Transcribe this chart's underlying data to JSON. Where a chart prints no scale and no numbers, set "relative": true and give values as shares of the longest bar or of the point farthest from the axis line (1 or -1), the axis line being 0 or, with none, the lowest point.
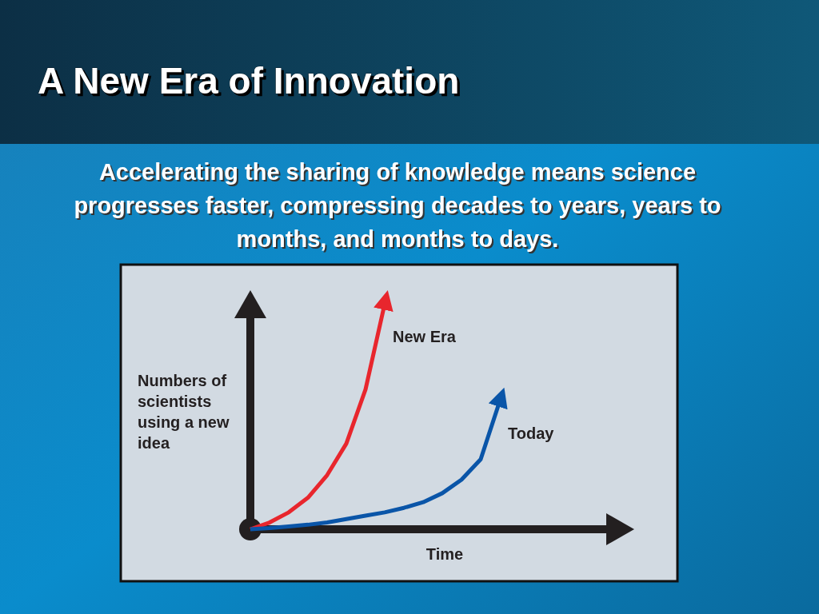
{
  "chart_data": {
    "type": "line",
    "title": "A New Era of Innovation",
    "subtitle": "Accelerating the sharing of knowledge means science progresses faster, compressing decades to years, years to months, and months to days.",
    "xlabel": "Time",
    "ylabel": "Numbers of scientists using a new idea",
    "relative": true,
    "marker": "none",
    "line_style": "solid",
    "categories": [
      null,
      null,
      null,
      null,
      null,
      null,
      null,
      null,
      null,
      null,
      null,
      null,
      null,
      null
    ],
    "series": [
      {
        "name": "New Era",
        "color": "#e8262d",
        "values": [
          0,
          0.03,
          0.075,
          0.14,
          0.24,
          0.38,
          0.62,
          1.0,
          null,
          null,
          null,
          null,
          null,
          null
        ]
      },
      {
        "name": "Today",
        "color": "#0a55a8",
        "values": [
          0,
          0.005,
          0.012,
          0.02,
          0.03,
          0.045,
          0.06,
          0.075,
          0.095,
          0.12,
          0.16,
          0.22,
          0.31,
          0.57
        ]
      }
    ]
  }
}
